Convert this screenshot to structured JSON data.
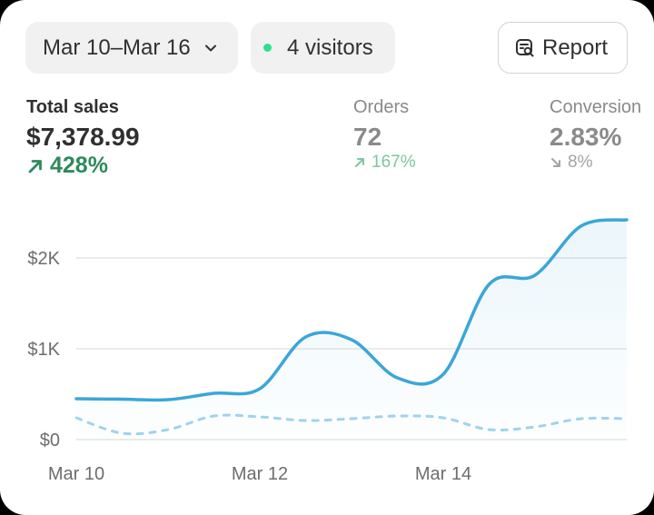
{
  "toolbar": {
    "date_range": "Mar 10–Mar 16",
    "visitors_label": "4 visitors",
    "visitors_dot_color": "#2ee08f",
    "report_label": "Report",
    "report_icon": "report-search-icon",
    "chevron_icon": "chevron-down-icon"
  },
  "metrics": [
    {
      "label": "Total sales",
      "value": "$7,378.99",
      "change": "428%",
      "direction": "up",
      "color": "#2e8a5b"
    },
    {
      "label": "Orders",
      "value": "72",
      "change": "167%",
      "direction": "up",
      "color": "#7ec5a0"
    },
    {
      "label": "Conversion",
      "value": "2.83%",
      "change": "8%",
      "direction": "down",
      "color": "#a3a3a3"
    }
  ],
  "chart_data": {
    "type": "line",
    "x": [
      "Mar 10",
      "Mar 10.5",
      "Mar 11",
      "Mar 11.5",
      "Mar 12",
      "Mar 12.5",
      "Mar 13",
      "Mar 13.5",
      "Mar 14",
      "Mar 14.5",
      "Mar 15",
      "Mar 15.5",
      "Mar 16"
    ],
    "x_tick_labels": [
      "Mar 10",
      "Mar 12",
      "Mar 14"
    ],
    "y_tick_labels": [
      "$0",
      "$1K",
      "$2K"
    ],
    "ylim": [
      0,
      2500
    ],
    "grid": true,
    "series": [
      {
        "style": "solid",
        "color": "#3aa6d8",
        "fill": true,
        "values": [
          450,
          445,
          440,
          510,
          560,
          1130,
          1100,
          680,
          720,
          1710,
          1810,
          2350,
          2420
        ]
      },
      {
        "style": "dashed",
        "color": "#9fd3ec",
        "fill": false,
        "values": [
          240,
          70,
          110,
          260,
          250,
          210,
          230,
          260,
          240,
          110,
          140,
          230,
          230
        ]
      }
    ]
  }
}
